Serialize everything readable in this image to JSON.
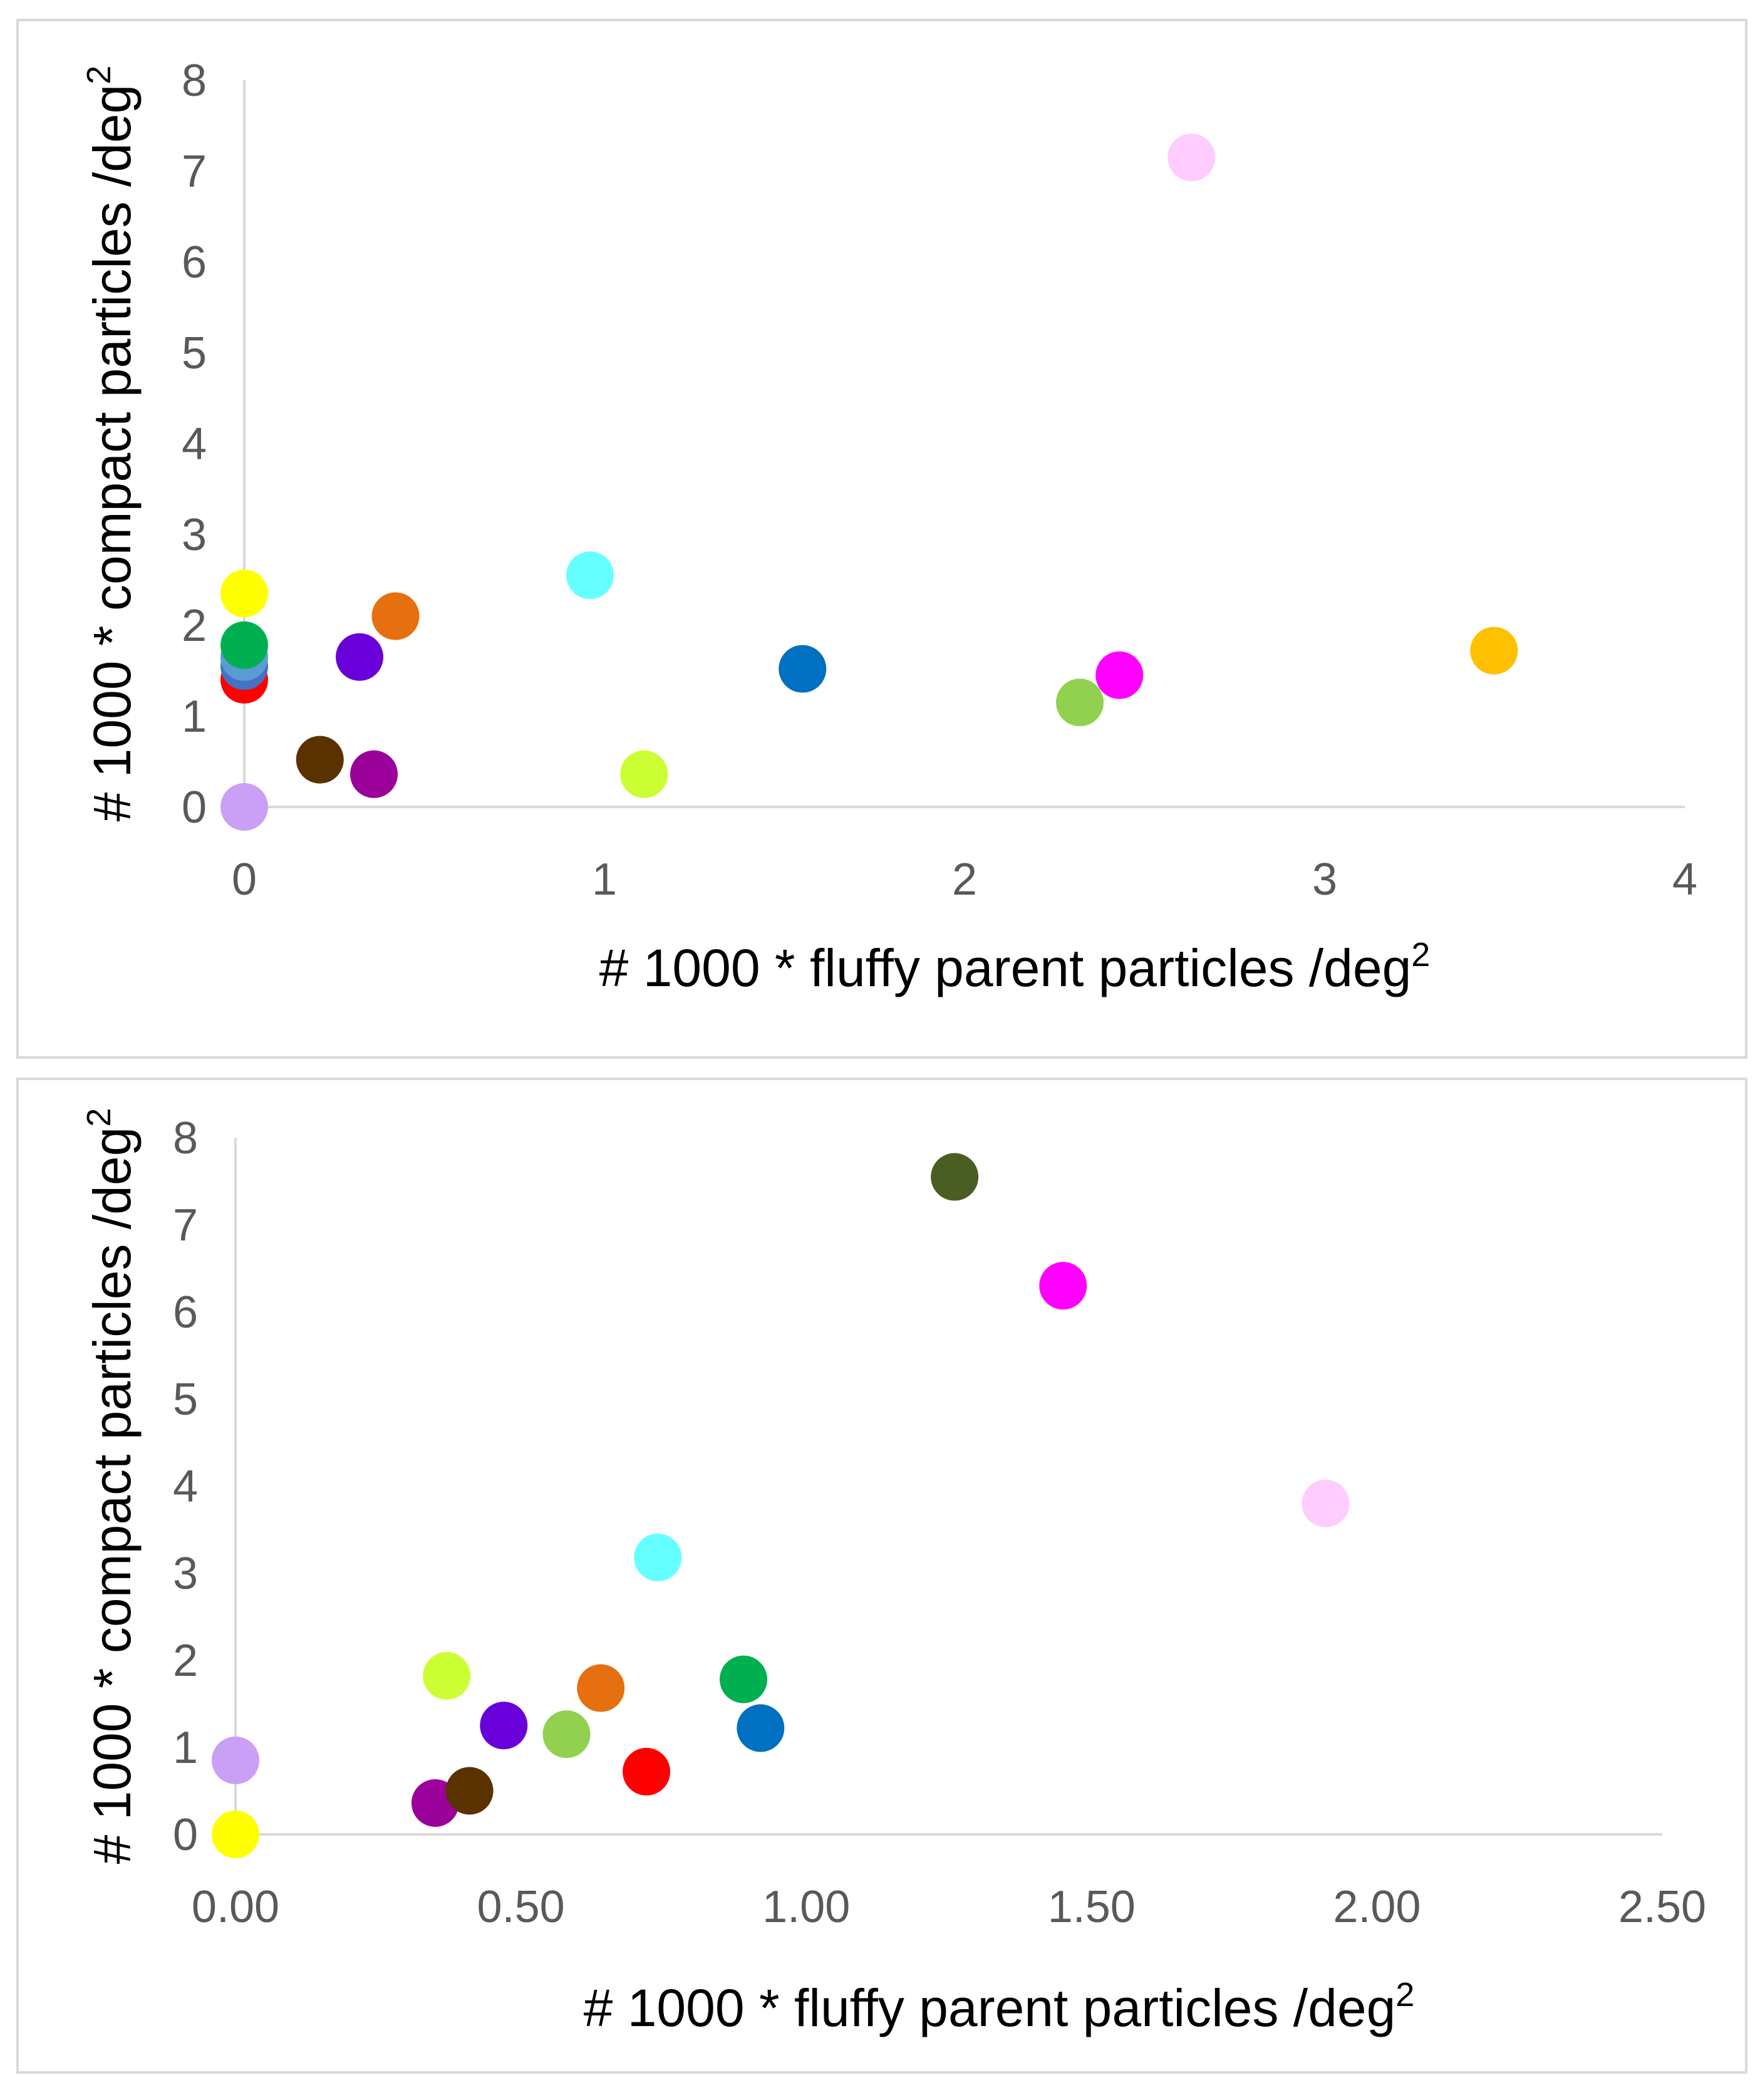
{
  "chart_data": [
    {
      "type": "scatter",
      "xlabel": "# 1000 * fluffy parent particles /deg",
      "xlabel_sup": "2",
      "ylabel": "# 1000 * compact particles /deg",
      "ylabel_sup": "2",
      "xlim": [
        0,
        4
      ],
      "ylim": [
        0,
        8
      ],
      "x_ticks": [
        "0",
        "1",
        "2",
        "3",
        "4"
      ],
      "y_ticks": [
        "0",
        "1",
        "2",
        "3",
        "4",
        "5",
        "6",
        "7",
        "8"
      ],
      "grid": false,
      "points": [
        {
          "x": 0.0,
          "y": 2.35,
          "color": "#ffff00"
        },
        {
          "x": 0.0,
          "y": 1.4,
          "color": "#ff0000"
        },
        {
          "x": 0.0,
          "y": 1.55,
          "color": "#4472c4"
        },
        {
          "x": 0.0,
          "y": 1.65,
          "color": "#5b9bd5"
        },
        {
          "x": 0.0,
          "y": 1.78,
          "color": "#00b050"
        },
        {
          "x": 0.0,
          "y": 0.0,
          "color": "#c9a0f5"
        },
        {
          "x": 0.21,
          "y": 0.52,
          "color": "#5a3200"
        },
        {
          "x": 0.32,
          "y": 1.65,
          "color": "#6a00d9"
        },
        {
          "x": 0.36,
          "y": 0.36,
          "color": "#9b009b"
        },
        {
          "x": 0.42,
          "y": 2.1,
          "color": "#e67010"
        },
        {
          "x": 0.96,
          "y": 2.55,
          "color": "#66ffff"
        },
        {
          "x": 1.11,
          "y": 0.36,
          "color": "#ccff33"
        },
        {
          "x": 1.55,
          "y": 1.52,
          "color": "#0070c0"
        },
        {
          "x": 2.32,
          "y": 1.15,
          "color": "#92d050"
        },
        {
          "x": 2.43,
          "y": 1.45,
          "color": "#ff00ff"
        },
        {
          "x": 2.63,
          "y": 7.15,
          "color": "#ffccff"
        },
        {
          "x": 3.47,
          "y": 1.72,
          "color": "#ffc000"
        }
      ]
    },
    {
      "type": "scatter",
      "xlabel": "# 1000 * fluffy parent particles /deg",
      "xlabel_sup": "2",
      "ylabel": "# 1000 * compact particles /deg",
      "ylabel_sup": "2",
      "xlim": [
        0,
        2.5
      ],
      "ylim": [
        0,
        8
      ],
      "x_ticks": [
        "0.00",
        "0.50",
        "1.00",
        "1.50",
        "2.00",
        "2.50"
      ],
      "y_ticks": [
        "0",
        "1",
        "2",
        "3",
        "4",
        "5",
        "6",
        "7",
        "8"
      ],
      "grid": false,
      "points": [
        {
          "x": 0.0,
          "y": 0.0,
          "color": "#ffff00"
        },
        {
          "x": 0.0,
          "y": 0.85,
          "color": "#c9a0f5"
        },
        {
          "x": 0.35,
          "y": 0.36,
          "color": "#9b009b"
        },
        {
          "x": 0.37,
          "y": 1.82,
          "color": "#ccff33"
        },
        {
          "x": 0.41,
          "y": 0.5,
          "color": "#5a3200"
        },
        {
          "x": 0.47,
          "y": 1.25,
          "color": "#6a00d9"
        },
        {
          "x": 0.58,
          "y": 1.15,
          "color": "#92d050"
        },
        {
          "x": 0.64,
          "y": 1.68,
          "color": "#e67010"
        },
        {
          "x": 0.72,
          "y": 0.72,
          "color": "#ff0000"
        },
        {
          "x": 0.74,
          "y": 3.18,
          "color": "#66ffff"
        },
        {
          "x": 0.89,
          "y": 1.78,
          "color": "#00b050"
        },
        {
          "x": 0.92,
          "y": 1.22,
          "color": "#0070c0"
        },
        {
          "x": 1.26,
          "y": 7.55,
          "color": "#4a5e23"
        },
        {
          "x": 1.45,
          "y": 6.3,
          "color": "#ff00ff"
        },
        {
          "x": 1.91,
          "y": 3.8,
          "color": "#ffccff"
        }
      ]
    }
  ]
}
